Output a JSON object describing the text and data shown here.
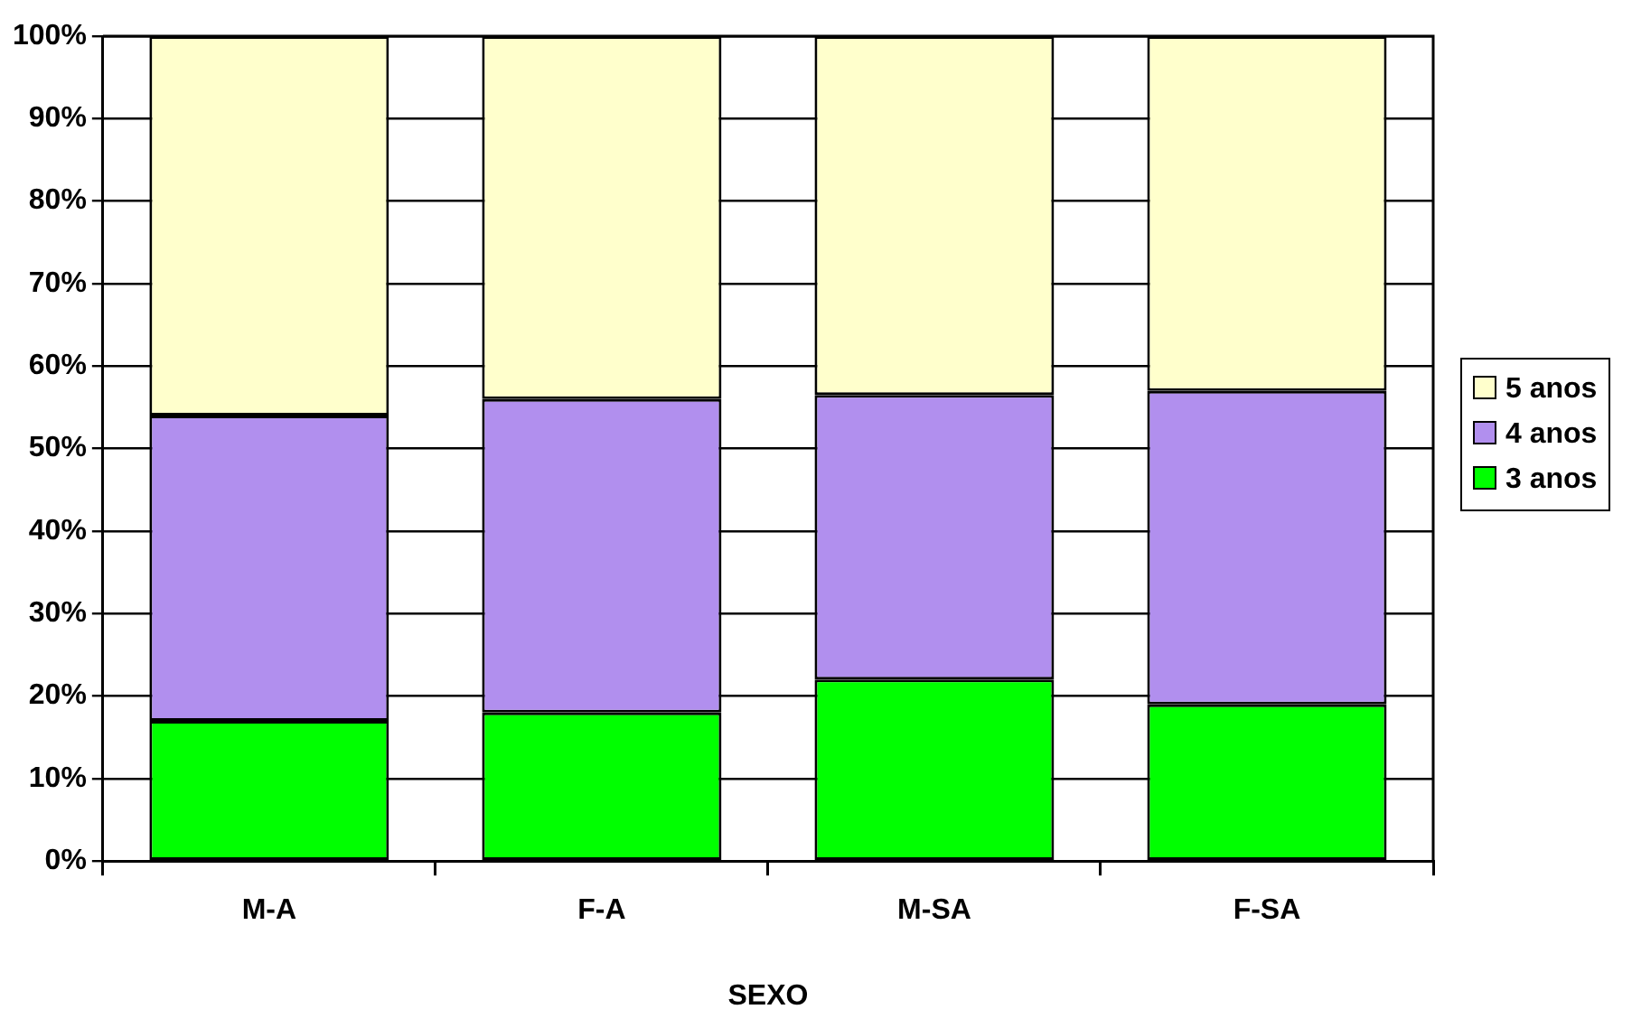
{
  "chart_data": {
    "type": "bar",
    "stacked": true,
    "xlabel": "SEXO",
    "categories": [
      "M-A",
      "F-A",
      "M-SA",
      "F-SA"
    ],
    "series": [
      {
        "name": "3 anos",
        "color": "#00ff00",
        "values": [
          17,
          18,
          22,
          19
        ]
      },
      {
        "name": "4 anos",
        "color": "#b18fee",
        "values": [
          37,
          38,
          34.5,
          38
        ]
      },
      {
        "name": "5 anos",
        "color": "#ffffcc",
        "values": [
          46,
          44,
          43.5,
          43
        ]
      }
    ],
    "ylim": [
      0,
      100
    ],
    "yticks": [
      {
        "value": 0,
        "label": "0%"
      },
      {
        "value": 10,
        "label": "10%"
      },
      {
        "value": 20,
        "label": "20%"
      },
      {
        "value": 30,
        "label": "30%"
      },
      {
        "value": 40,
        "label": "40%"
      },
      {
        "value": 50,
        "label": "50%"
      },
      {
        "value": 60,
        "label": "60%"
      },
      {
        "value": 70,
        "label": "70%"
      },
      {
        "value": 80,
        "label": "80%"
      },
      {
        "value": 90,
        "label": "90%"
      },
      {
        "value": 100,
        "label": "100%"
      }
    ],
    "grid": "y",
    "legend": "right"
  }
}
